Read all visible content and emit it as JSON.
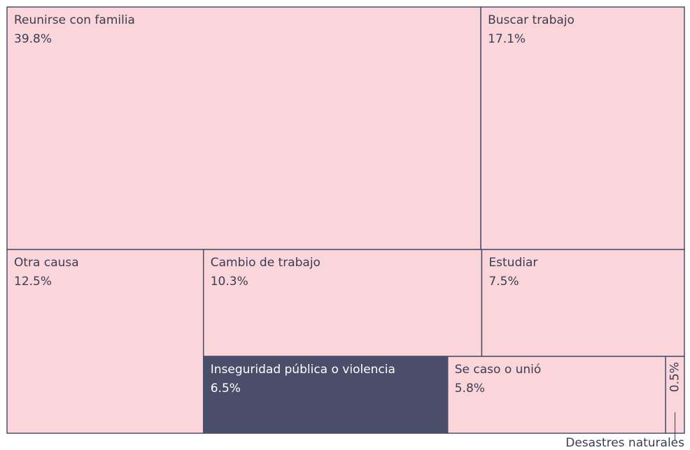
{
  "chart_data": {
    "type": "treemap",
    "categories": [
      "Reunirse con familia",
      "Buscar trabajo",
      "Otra causa",
      "Cambio de trabajo",
      "Estudiar",
      "Inseguridad pública o violencia",
      "Se caso o unió",
      "Desastres naturales"
    ],
    "values": [
      39.8,
      17.1,
      12.5,
      10.3,
      7.5,
      6.5,
      5.8,
      0.5
    ],
    "value_labels": [
      "39.8%",
      "17.1%",
      "12.5%",
      "10.3%",
      "7.5%",
      "6.5%",
      "5.8%",
      "0.5%"
    ],
    "colors": [
      "#fad5d9",
      "#fad5d9",
      "#fad5d9",
      "#fad5d9",
      "#fad5d9",
      "#4a4e6b",
      "#fad5d9",
      "#fad5d9"
    ]
  }
}
